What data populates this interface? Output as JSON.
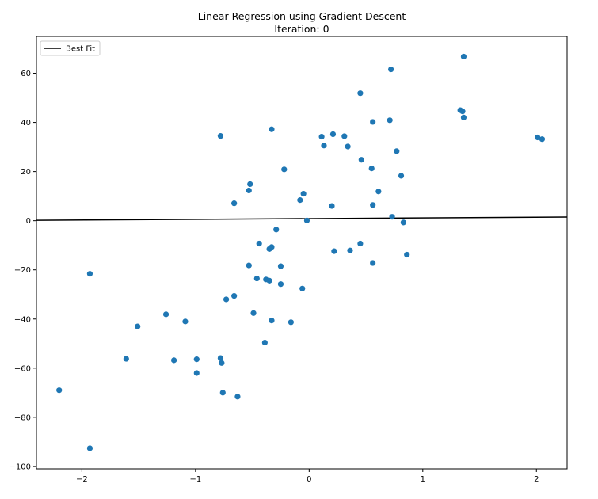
{
  "chart_data": {
    "type": "scatter",
    "title": "Linear Regression using Gradient Descent",
    "subtitle": "Iteration: 0",
    "xlabel": "",
    "ylabel": "",
    "xlim": [
      -2.4,
      2.27
    ],
    "ylim": [
      -101,
      75
    ],
    "x_ticks": [
      -2,
      -1,
      0,
      1,
      2
    ],
    "y_ticks": [
      -100,
      -80,
      -60,
      -40,
      -20,
      0,
      20,
      40,
      60
    ],
    "x_tick_labels": [
      "−2",
      "−1",
      "0",
      "1",
      "2"
    ],
    "y_tick_labels": [
      "−100",
      "−80",
      "−60",
      "−40",
      "−20",
      "0",
      "20",
      "40",
      "60"
    ],
    "grid": false,
    "legend": {
      "placement": "top-left",
      "entries": [
        "Best Fit"
      ]
    },
    "colors": {
      "points": "#1f77b4",
      "line": "#000000"
    },
    "series": [
      {
        "kind": "scatter",
        "points": [
          [
            -2.2,
            -69
          ],
          [
            -1.93,
            -92.6
          ],
          [
            -1.93,
            -21.6
          ],
          [
            -1.61,
            -56.2
          ],
          [
            -1.51,
            -43
          ],
          [
            -1.26,
            -38.1
          ],
          [
            -1.19,
            -56.8
          ],
          [
            -1.09,
            -41
          ],
          [
            -0.99,
            -56.4
          ],
          [
            -0.99,
            -62
          ],
          [
            -0.78,
            -55.9
          ],
          [
            -0.77,
            -57.9
          ],
          [
            -0.76,
            -70
          ],
          [
            -0.73,
            -32
          ],
          [
            -0.66,
            -30.6
          ],
          [
            -0.63,
            -71.6
          ],
          [
            -0.78,
            34.5
          ],
          [
            -0.66,
            7.1
          ],
          [
            -0.53,
            12.3
          ],
          [
            -0.52,
            14.9
          ],
          [
            -0.53,
            -18.2
          ],
          [
            -0.49,
            -37.6
          ],
          [
            -0.46,
            -23.5
          ],
          [
            -0.44,
            -9.3
          ],
          [
            -0.39,
            -49.6
          ],
          [
            -0.38,
            -23.9
          ],
          [
            -0.35,
            -24.4
          ],
          [
            -0.35,
            -11.5
          ],
          [
            -0.33,
            -40.6
          ],
          [
            -0.33,
            -10.7
          ],
          [
            -0.33,
            37.2
          ],
          [
            -0.29,
            -3.6
          ],
          [
            -0.25,
            -18.5
          ],
          [
            -0.25,
            -25.8
          ],
          [
            -0.22,
            20.9
          ],
          [
            -0.16,
            -41.3
          ],
          [
            -0.08,
            8.4
          ],
          [
            -0.06,
            -27.6
          ],
          [
            -0.05,
            11
          ],
          [
            -0.02,
            0.1
          ],
          [
            0.11,
            34.2
          ],
          [
            0.13,
            30.6
          ],
          [
            0.2,
            6
          ],
          [
            0.21,
            35.2
          ],
          [
            0.22,
            -12.4
          ],
          [
            0.31,
            34.4
          ],
          [
            0.34,
            30.2
          ],
          [
            0.36,
            -12.1
          ],
          [
            0.45,
            -9.3
          ],
          [
            0.45,
            51.9
          ],
          [
            0.46,
            24.8
          ],
          [
            0.55,
            21.3
          ],
          [
            0.56,
            6.4
          ],
          [
            0.56,
            40.2
          ],
          [
            0.56,
            -17.2
          ],
          [
            0.61,
            11.9
          ],
          [
            0.71,
            40.9
          ],
          [
            0.72,
            61.6
          ],
          [
            0.73,
            1.6
          ],
          [
            0.77,
            28.3
          ],
          [
            0.81,
            18.3
          ],
          [
            0.83,
            -0.7
          ],
          [
            0.86,
            -13.8
          ],
          [
            1.33,
            45
          ],
          [
            1.35,
            44.5
          ],
          [
            1.36,
            42
          ],
          [
            1.36,
            66.8
          ],
          [
            2.01,
            33.9
          ],
          [
            2.05,
            33.2
          ]
        ]
      },
      {
        "name": "Best Fit",
        "kind": "line",
        "x": [
          -2.4,
          2.27
        ],
        "y": [
          0.19,
          1.49
        ]
      }
    ]
  }
}
